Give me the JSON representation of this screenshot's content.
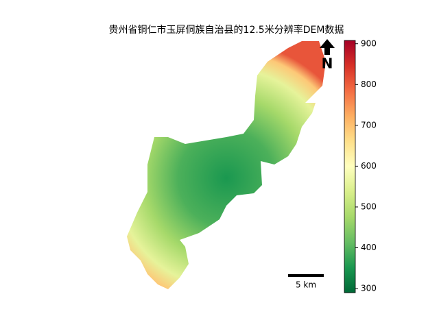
{
  "map": {
    "title": "贵州省铜仁市玉屏侗族自治县的12.5米分辨率DEM数据",
    "north_label": "N",
    "scale_bar_label": "5 km",
    "colorbar": {
      "lim": [
        290,
        908
      ],
      "ticks": [
        300,
        400,
        500,
        600,
        700,
        800,
        900
      ],
      "colormap": [
        "#006837",
        "#1a9850",
        "#66bd63",
        "#a6d96a",
        "#d9ef8b",
        "#ffffbf",
        "#fee08b",
        "#fdae61",
        "#f46d43",
        "#d73027",
        "#a50026"
      ]
    }
  }
}
